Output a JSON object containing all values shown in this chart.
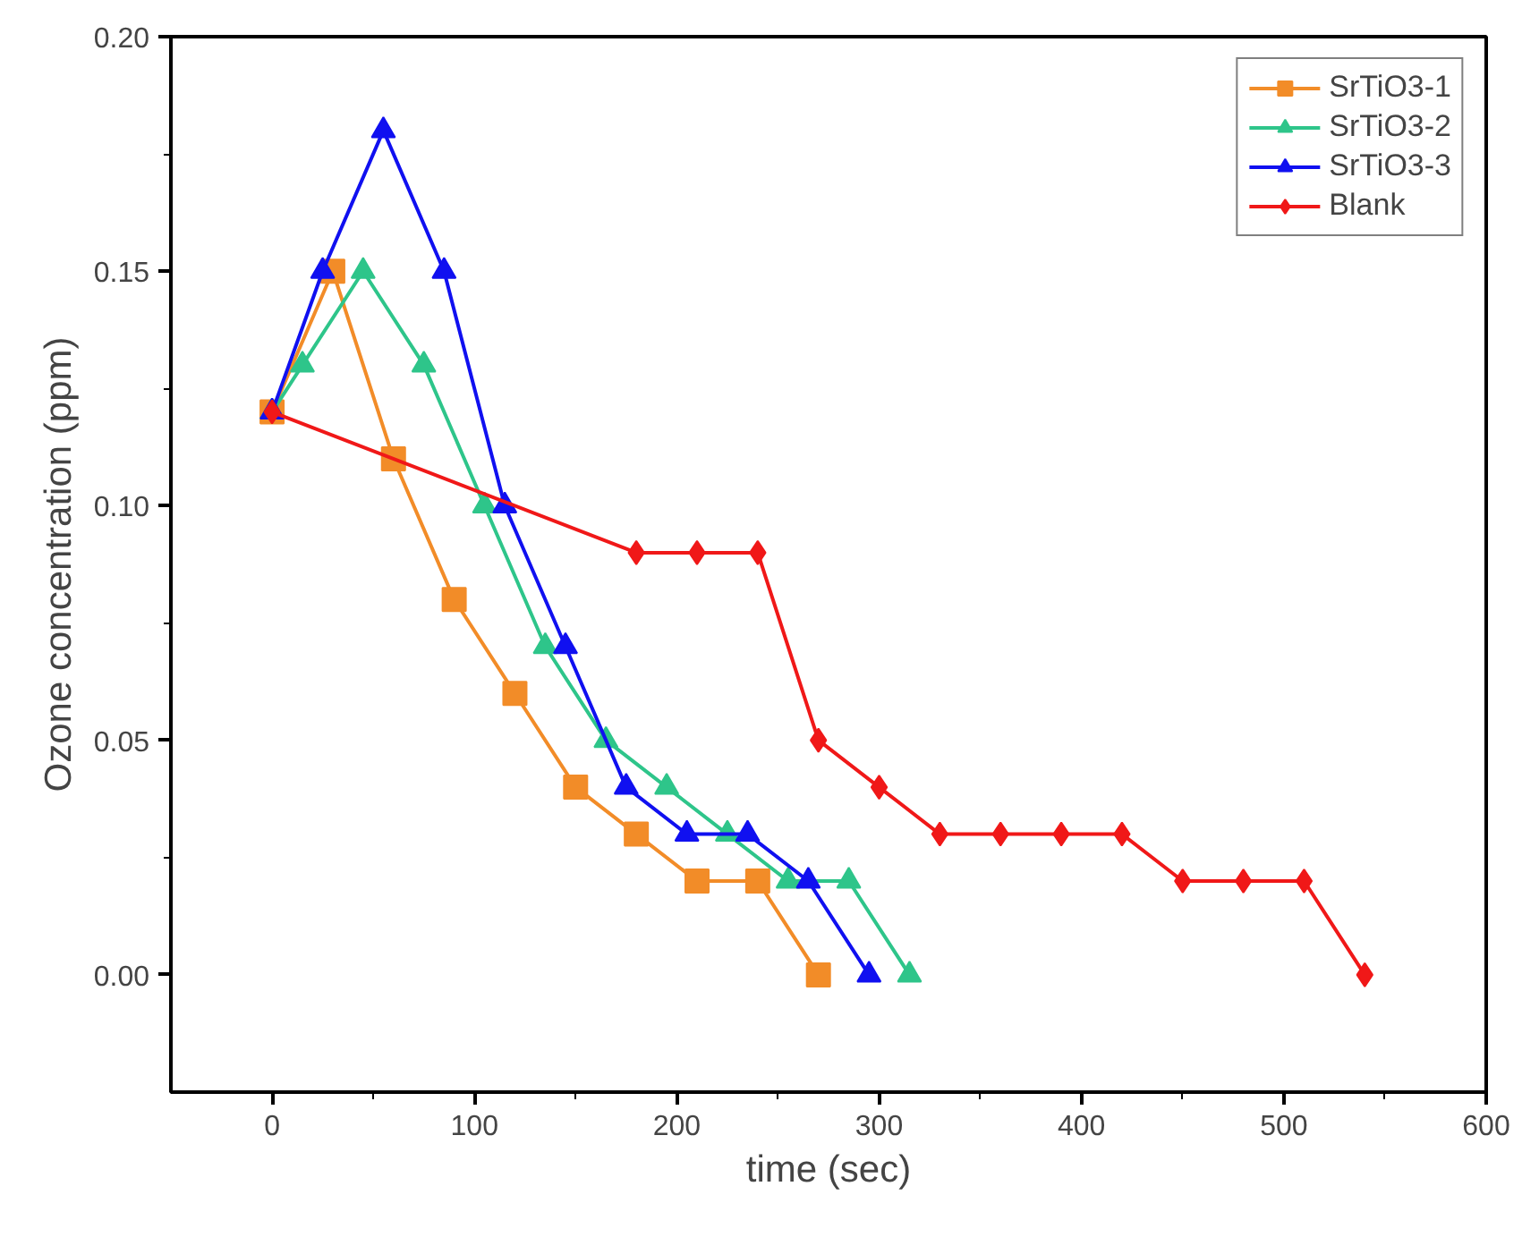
{
  "chart_data": {
    "type": "line",
    "xlabel": "time (sec)",
    "ylabel": "Ozone concentration (ppm)",
    "xlim": [
      -50,
      600
    ],
    "xticks": [
      0,
      100,
      200,
      300,
      400,
      500,
      600
    ],
    "ylim": [
      -0.025,
      0.2
    ],
    "yticks": [
      {
        "value": 0,
        "label": "0.00"
      },
      {
        "value": 0.05,
        "label": "0.05"
      },
      {
        "value": 0.1,
        "label": "0.10"
      },
      {
        "value": 0.15,
        "label": "0.15"
      },
      {
        "value": 0.2,
        "label": "0.20"
      }
    ],
    "legend": "top right",
    "grid": false,
    "line_style": "solid",
    "series": [
      {
        "name": "SrTiO3-1",
        "color": "#f28c28",
        "marker": "square",
        "x": [
          0,
          30,
          60,
          90,
          120,
          150,
          180,
          210,
          240,
          270
        ],
        "values": [
          0.12,
          0.15,
          0.11,
          0.08,
          0.06,
          0.04,
          0.03,
          0.02,
          0.02,
          0
        ]
      },
      {
        "name": "SrTiO3-2",
        "color": "#2ec58a",
        "marker": "triangle",
        "x": [
          0,
          15,
          45,
          75,
          105,
          135,
          165,
          195,
          225,
          255,
          285,
          315
        ],
        "values": [
          0.12,
          0.13,
          0.15,
          0.13,
          0.1,
          0.07,
          0.05,
          0.04,
          0.03,
          0.02,
          0.02,
          0
        ]
      },
      {
        "name": "SrTiO3-3",
        "color": "#1010f0",
        "marker": "triangle",
        "x": [
          0,
          25,
          55,
          85,
          115,
          145,
          175,
          205,
          235,
          265,
          295
        ],
        "values": [
          0.12,
          0.15,
          0.18,
          0.15,
          0.1,
          0.07,
          0.04,
          0.03,
          0.03,
          0.02,
          0
        ]
      },
      {
        "name": "Blank",
        "color": "#f01818",
        "marker": "diamond",
        "x": [
          0,
          180,
          210,
          240,
          270,
          300,
          330,
          360,
          390,
          420,
          450,
          480,
          510,
          540
        ],
        "values": [
          0.12,
          0.09,
          0.09,
          0.09,
          0.05,
          0.04,
          0.03,
          0.03,
          0.03,
          0.03,
          0.02,
          0.02,
          0.02,
          0
        ]
      }
    ]
  }
}
